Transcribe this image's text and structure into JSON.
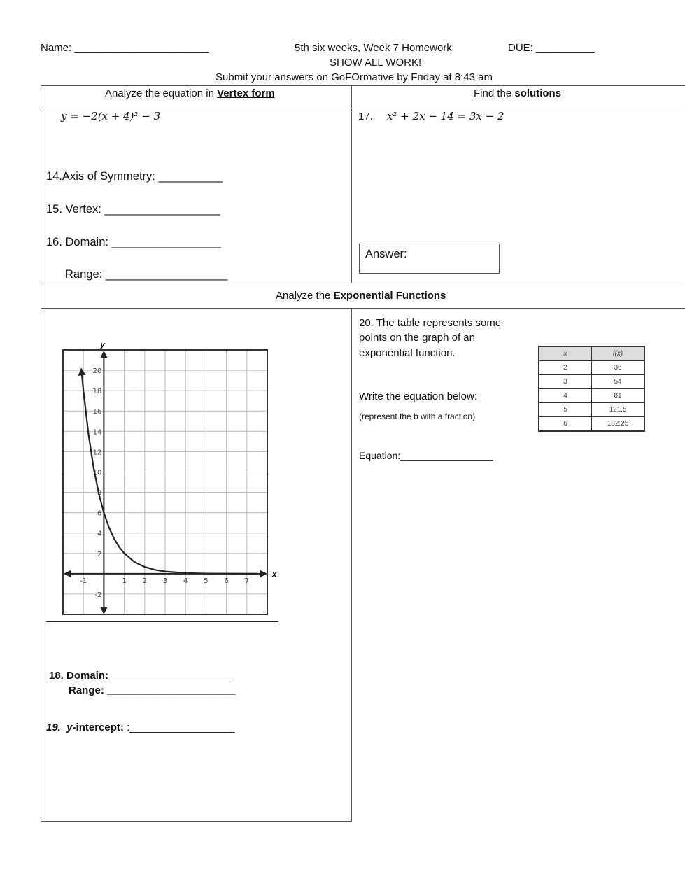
{
  "header": {
    "name_label": "Name: _______________________",
    "title": "5th six weeks, Week 7 Homework",
    "due_label": "DUE: __________",
    "line2": "SHOW ALL WORK!",
    "line3": "Submit your answers on GoFOrmative  by Friday at 8:43 am"
  },
  "section1": {
    "left_head_pre": "Analyze the equation in ",
    "left_head_bold": "Vertex form",
    "right_head_pre": "Find the ",
    "right_head_bold": "solutions",
    "equation": "y = −2(x + 4)² − 3",
    "q14": "14.Axis of Symmetry: __________",
    "q15": "15. Vertex: __________________",
    "q16": "16. Domain: _________________",
    "range": "Range: ___________________",
    "q17_num": "17.",
    "q17_eq": "x² + 2x − 14 = 3x − 2",
    "answer_label": "Answer:"
  },
  "section2": {
    "head_pre": "Analyze the ",
    "head_bold": "Exponential Functions",
    "q18_domain": "18.  Domain: _____________________",
    "q18_range": "Range: ______________________",
    "q19_num": "19.",
    "q19_label": "y",
    "q19_rest": "-intercept:",
    " q19_blank": ":__________________",
    "q20_l1": "20.  The table represents some",
    "q20_l2": "points on the graph of an",
    "q20_l3": "exponential function.",
    "write": "Write the equation below:",
    "hint": "(represent the b with a fraction)",
    "equation_label": "Equation:_________________",
    "table": {
      "headers": [
        "x",
        "f(x)"
      ],
      "rows": [
        [
          "2",
          "36"
        ],
        [
          "3",
          "54"
        ],
        [
          "4",
          "81"
        ],
        [
          "5",
          "121.5"
        ],
        [
          "6",
          "182.25"
        ]
      ]
    }
  },
  "chart_data": {
    "type": "line",
    "xlabel": "x",
    "ylabel": "y",
    "xlim": [
      -2,
      8
    ],
    "ylim": [
      -4,
      22
    ],
    "grid": true,
    "x_ticks": [
      "-1",
      "1",
      "2",
      "3",
      "4",
      "5",
      "6",
      "7"
    ],
    "y_ticks": [
      "20",
      "18",
      "16",
      "14",
      "12",
      "10",
      "8",
      "6",
      "4",
      "2",
      "-2"
    ],
    "points": [
      [
        -1.1,
        20.1
      ],
      [
        -1,
        18
      ],
      [
        -0.75,
        13.7
      ],
      [
        -0.5,
        10.4
      ],
      [
        -0.25,
        7.9
      ],
      [
        0,
        6
      ],
      [
        0.25,
        4.56
      ],
      [
        0.5,
        3.46
      ],
      [
        0.75,
        2.63
      ],
      [
        1,
        2
      ],
      [
        1.5,
        1.15
      ],
      [
        2,
        0.67
      ],
      [
        2.5,
        0.38
      ],
      [
        3,
        0.22
      ],
      [
        4,
        0.07
      ],
      [
        5,
        0.02
      ],
      [
        7.5,
        0
      ]
    ]
  }
}
